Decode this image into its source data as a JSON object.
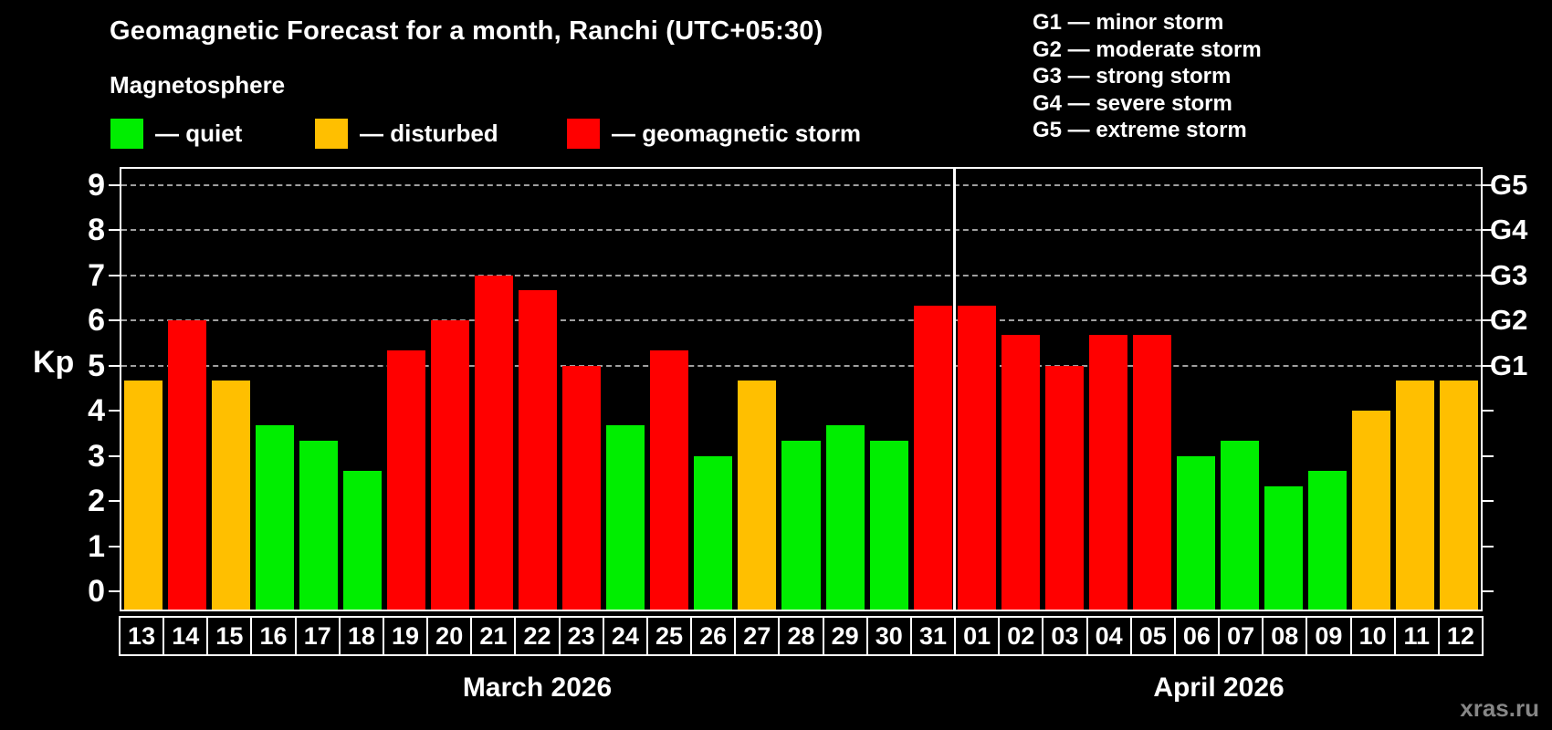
{
  "header": {
    "title": "Geomagnetic Forecast for a month, Ranchi (UTC+05:30)",
    "subtitle": "Magnetosphere"
  },
  "legend": {
    "items": [
      {
        "key": "quiet",
        "label": "— quiet",
        "color": "#00ee00"
      },
      {
        "key": "disturbed",
        "label": "— disturbed",
        "color": "#ffbf00"
      },
      {
        "key": "storm",
        "label": "— geomagnetic storm",
        "color": "#ff0000"
      }
    ]
  },
  "g_legend": {
    "lines": [
      "G1 — minor storm",
      "G2 — moderate storm",
      "G3 — strong storm",
      "G4 — severe storm",
      "G5 — extreme storm"
    ]
  },
  "axes": {
    "y_label": "Kp",
    "y_ticks": [
      0,
      1,
      2,
      3,
      4,
      5,
      6,
      7,
      8,
      9
    ],
    "right_labels": [
      {
        "kp": 5,
        "label": "G1"
      },
      {
        "kp": 6,
        "label": "G2"
      },
      {
        "kp": 7,
        "label": "G3"
      },
      {
        "kp": 8,
        "label": "G4"
      },
      {
        "kp": 9,
        "label": "G5"
      }
    ]
  },
  "watermark": "xras.ru",
  "chart_data": {
    "type": "bar",
    "title": "Geomagnetic Forecast for a month, Ranchi (UTC+05:30)",
    "subtitle": "Magnetosphere",
    "xlabel": "",
    "ylabel": "Kp",
    "ylim": [
      0,
      9.4
    ],
    "grid": "horizontal dashed lines at Kp 5,6,7,8,9 (G1–G5)",
    "legend_position": "top-left",
    "categories": [
      "13",
      "14",
      "15",
      "16",
      "17",
      "18",
      "19",
      "20",
      "21",
      "22",
      "23",
      "24",
      "25",
      "26",
      "27",
      "28",
      "29",
      "30",
      "31",
      "01",
      "02",
      "03",
      "04",
      "05",
      "06",
      "07",
      "08",
      "09",
      "10",
      "11",
      "12"
    ],
    "values": [
      4.67,
      6.0,
      4.67,
      3.67,
      3.33,
      2.67,
      5.33,
      6.0,
      7.0,
      6.67,
      5.0,
      3.67,
      5.33,
      3.0,
      4.67,
      3.33,
      3.67,
      3.33,
      6.33,
      6.33,
      5.67,
      5.0,
      5.67,
      5.67,
      3.0,
      3.33,
      2.33,
      2.67,
      4.0,
      4.67,
      4.67
    ],
    "statuses": [
      "disturbed",
      "storm",
      "disturbed",
      "quiet",
      "quiet",
      "quiet",
      "storm",
      "storm",
      "storm",
      "storm",
      "storm",
      "quiet",
      "storm",
      "quiet",
      "disturbed",
      "quiet",
      "quiet",
      "quiet",
      "storm",
      "storm",
      "storm",
      "storm",
      "storm",
      "storm",
      "quiet",
      "quiet",
      "quiet",
      "quiet",
      "disturbed",
      "disturbed",
      "disturbed"
    ],
    "months": [
      {
        "label": "March 2026",
        "days": 19
      },
      {
        "label": "April 2026",
        "days": 12
      }
    ]
  }
}
